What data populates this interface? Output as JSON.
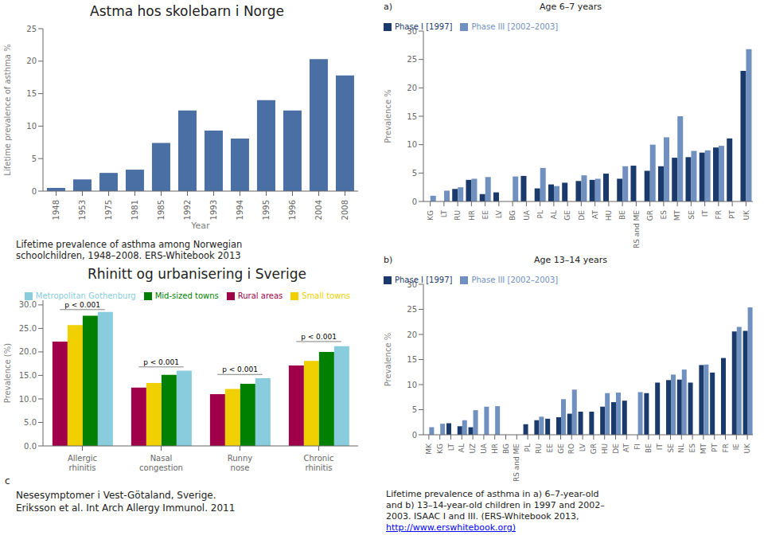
{
  "chart_data": [
    {
      "type": "bar",
      "title": "Astma hos skolebarn i Norge",
      "x_label": "Year",
      "y_label": "Lifetime prevalence of asthma %",
      "categories": [
        "1948",
        "1953",
        "1975",
        "1981",
        "1985",
        "1992",
        "1993",
        "1994",
        "1995",
        "1996",
        "2004",
        "2008"
      ],
      "values": [
        0.5,
        1.8,
        2.8,
        3.3,
        7.4,
        12.4,
        9.3,
        8.1,
        14.0,
        12.4,
        20.3,
        17.8
      ],
      "color": "#4a6fa5",
      "ylim": [
        0,
        25
      ],
      "yticks": [
        0,
        5,
        10,
        15,
        20,
        25
      ],
      "grid": false,
      "caption": "Lifetime prevalence of asthma among Norwegian\nschoolchildren, 1948–2008. ERS-Whitebook 2013"
    },
    {
      "type": "bar",
      "title": "Rhinitt og urbanisering i Sverige",
      "y_label": "Prevalence (%)",
      "categories": [
        "Allergic\nrhinitis",
        "Nasal\ncongestion",
        "Runny\nnose",
        "Chronic\nrhinitis"
      ],
      "series": [
        {
          "name": "Rural areas",
          "color": "#a0004a",
          "values": [
            22.2,
            12.4,
            11.0,
            17.1
          ]
        },
        {
          "name": "Small towns",
          "color": "#f0d000",
          "values": [
            25.7,
            13.4,
            12.1,
            18.1
          ]
        },
        {
          "name": "Mid-sized towns",
          "color": "#008000",
          "values": [
            27.7,
            15.1,
            13.2,
            20.0
          ]
        },
        {
          "name": "Metropolitan Gothenburg",
          "color": "#88ccdd",
          "values": [
            28.5,
            16.0,
            14.4,
            21.2
          ]
        }
      ],
      "ylim": [
        0,
        31
      ],
      "yticks": [
        {
          "value": 0,
          "label": "0.0"
        },
        {
          "value": 5.0,
          "label": "5.0"
        },
        {
          "value": 10.0,
          "label": "10.0"
        },
        {
          "value": 15.0,
          "label": "15.0"
        },
        {
          "value": 20.0,
          "label": "20.0"
        },
        {
          "value": 25.0,
          "label": "25.0"
        },
        {
          "value": 30.0,
          "label": "30.0"
        }
      ],
      "legend": "upper right",
      "grid": false,
      "annotations": [
        {
          "text": "p < 0.001",
          "category": "Allergic\nrhinitis",
          "y": 29.0
        },
        {
          "text": "p < 0.001",
          "category": "Nasal\ncongestion",
          "y": 16.8
        },
        {
          "text": "p < 0.001",
          "category": "Runny\nnose",
          "y": 15.2
        },
        {
          "text": "p < 0.001",
          "category": "Chronic\nrhinitis",
          "y": 22.2
        }
      ],
      "panel_label": "c",
      "captions": [
        "Nesesymptomer i Vest-Götaland, Sverige.",
        "Eriksson et al. Int Arch Allergy Immunol. 2011"
      ]
    },
    {
      "type": "bar",
      "title": "Age 6–7 years",
      "y_label": "Prevalence %",
      "panel_label": "a)",
      "categories": [
        "KG",
        "LT",
        "RU",
        "HR",
        "EE",
        "LV",
        "BG",
        "UA",
        "PL",
        "AL",
        "GE",
        "DE",
        "AT",
        "HU",
        "BE",
        "RS and ME",
        "GR",
        "ES",
        "MT",
        "SE",
        "IT",
        "FR",
        "PT",
        "UK"
      ],
      "series": [
        {
          "name": "Phase I [1997]",
          "color": "#1a3a6b",
          "values": [
            0.0,
            0.0,
            2.2,
            3.8,
            1.3,
            1.6,
            0.0,
            4.5,
            2.3,
            3.0,
            3.3,
            3.6,
            3.8,
            4.9,
            4.0,
            6.3,
            5.4,
            6.2,
            7.7,
            7.8,
            8.6,
            9.5,
            11.1,
            23.0
          ]
        },
        {
          "name": "Phase III [2002–2003]",
          "color": "#7090c0",
          "values": [
            1.0,
            1.9,
            2.5,
            4.0,
            4.3,
            0.0,
            4.4,
            0.0,
            5.9,
            2.7,
            0.0,
            4.6,
            4.0,
            0.0,
            6.2,
            0.0,
            10.0,
            11.3,
            15.0,
            8.9,
            9.0,
            9.8,
            0.0,
            26.8
          ]
        }
      ],
      "ylim": [
        0,
        30
      ],
      "yticks": [
        0,
        5,
        10,
        15,
        20,
        25,
        30
      ],
      "legend": "upper left",
      "grid": false
    },
    {
      "type": "bar",
      "title": "Age 13–14 years",
      "y_label": "Prevalence %",
      "panel_label": "b)",
      "categories": [
        "MK",
        "KG",
        "LT",
        "AL",
        "UZ",
        "UA",
        "HR",
        "BG",
        "RS and ME",
        "PL",
        "RU",
        "EE",
        "GE",
        "RO",
        "LV",
        "GR",
        "HU",
        "DE",
        "AT",
        "FI",
        "BE",
        "IT",
        "SE",
        "NL",
        "ES",
        "MT",
        "PT",
        "FR",
        "IE",
        "UK"
      ],
      "series": [
        {
          "name": "Phase I [1997]",
          "color": "#1a3a6b",
          "values": [
            0.0,
            0.0,
            2.3,
            1.7,
            1.5,
            0.0,
            0.0,
            0.0,
            0.0,
            2.1,
            2.9,
            3.2,
            3.5,
            4.2,
            4.6,
            4.6,
            5.6,
            6.5,
            6.8,
            0.0,
            8.3,
            10.4,
            10.9,
            11.0,
            10.4,
            13.9,
            12.4,
            15.3,
            20.6,
            20.7
          ]
        },
        {
          "name": "Phase III [2002–2003]",
          "color": "#7090c0",
          "values": [
            1.5,
            2.2,
            0.0,
            2.9,
            4.9,
            5.6,
            5.7,
            0.0,
            0.0,
            0.0,
            3.6,
            0.0,
            7.1,
            9.0,
            0.0,
            0.0,
            8.3,
            8.4,
            0.0,
            8.5,
            0.0,
            0.0,
            12.0,
            13.0,
            0.0,
            14.0,
            0.0,
            0.0,
            21.5,
            25.4
          ]
        }
      ],
      "ylim": [
        0,
        30
      ],
      "yticks": [
        0,
        5,
        10,
        15,
        20,
        25,
        30
      ],
      "legend": "upper left",
      "grid": false,
      "caption": "Lifetime prevalence of asthma in a) 6–7-year-old\nand b) 13–14-year-old children in 1997 and 2002–\n2003. ISAAC I and III. (ERS-Whitebook 2013,\nhttp://www.erswhitebook.org)"
    }
  ]
}
